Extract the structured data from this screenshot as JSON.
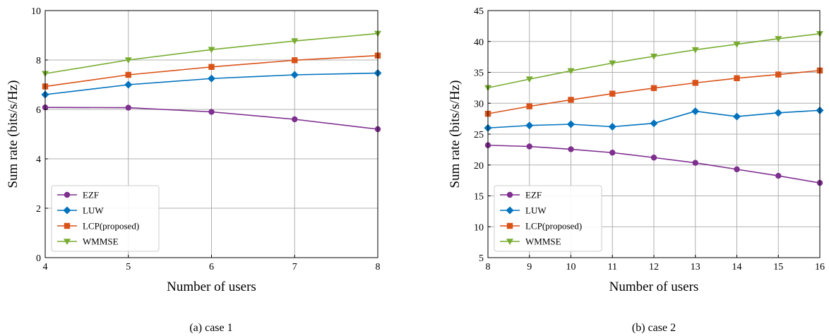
{
  "chart_data": [
    {
      "type": "line",
      "caption": "(a)  case 1",
      "xlabel": "Number of users",
      "ylabel": "Sum rate (bits/s/Hz)",
      "xlim": [
        4,
        8
      ],
      "ylim": [
        0,
        10
      ],
      "xticks": [
        4,
        5,
        6,
        7,
        8
      ],
      "yticks": [
        0,
        2,
        4,
        6,
        8,
        10
      ],
      "grid": true,
      "legend_position": "lower-left",
      "x": [
        4,
        5,
        6,
        7,
        8
      ],
      "series": [
        {
          "name": "EZF",
          "color": "#7E2F8E",
          "marker": "circle",
          "values": [
            6.08,
            6.07,
            5.9,
            5.6,
            5.2
          ]
        },
        {
          "name": "LUW",
          "color": "#0072BD",
          "marker": "diamond",
          "values": [
            6.6,
            7.0,
            7.25,
            7.4,
            7.47
          ]
        },
        {
          "name": "LCP(proposed)",
          "color": "#D95319",
          "marker": "square",
          "values": [
            6.93,
            7.4,
            7.72,
            7.99,
            8.18
          ]
        },
        {
          "name": "WMMSE",
          "color": "#77AC30",
          "marker": "triangle-down",
          "values": [
            7.45,
            8.0,
            8.42,
            8.77,
            9.07
          ]
        }
      ]
    },
    {
      "type": "line",
      "caption": "(b)  case 2",
      "xlabel": "Number of users",
      "ylabel": "Sum rate (bits/s/Hz)",
      "xlim": [
        8,
        16
      ],
      "ylim": [
        5,
        45
      ],
      "xticks": [
        8,
        9,
        10,
        11,
        12,
        13,
        14,
        15,
        16
      ],
      "yticks": [
        5,
        10,
        15,
        20,
        25,
        30,
        35,
        40,
        45
      ],
      "grid": true,
      "legend_position": "lower-left",
      "x": [
        8,
        9,
        10,
        11,
        12,
        13,
        14,
        15,
        16
      ],
      "series": [
        {
          "name": "EZF",
          "color": "#7E2F8E",
          "marker": "circle",
          "values": [
            23.2,
            23.0,
            22.55,
            22.0,
            21.2,
            20.35,
            19.3,
            18.25,
            17.1
          ]
        },
        {
          "name": "LUW",
          "color": "#0072BD",
          "marker": "diamond",
          "values": [
            26.0,
            26.4,
            26.6,
            26.2,
            26.75,
            28.7,
            27.85,
            28.45,
            28.85
          ]
        },
        {
          "name": "LCP(proposed)",
          "color": "#D95319",
          "marker": "square",
          "values": [
            28.3,
            29.5,
            30.55,
            31.55,
            32.45,
            33.3,
            34.05,
            34.65,
            35.3
          ]
        },
        {
          "name": "WMMSE",
          "color": "#77AC30",
          "marker": "triangle-down",
          "values": [
            32.5,
            33.9,
            35.25,
            36.5,
            37.6,
            38.65,
            39.55,
            40.45,
            41.25
          ]
        }
      ]
    }
  ]
}
